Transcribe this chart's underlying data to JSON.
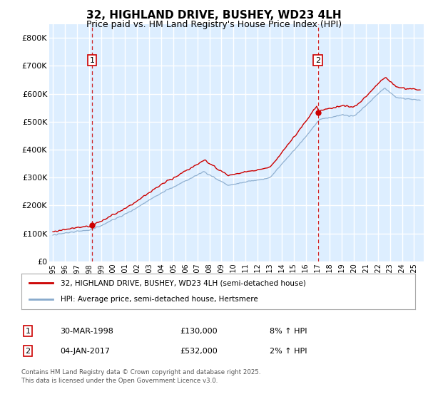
{
  "title_line1": "32, HIGHLAND DRIVE, BUSHEY, WD23 4LH",
  "title_line2": "Price paid vs. HM Land Registry's House Price Index (HPI)",
  "y_ticks": [
    0,
    100000,
    200000,
    300000,
    400000,
    500000,
    600000,
    700000,
    800000
  ],
  "y_tick_labels": [
    "£0",
    "£100K",
    "£200K",
    "£300K",
    "£400K",
    "£500K",
    "£600K",
    "£700K",
    "£800K"
  ],
  "red_line_color": "#cc0000",
  "blue_line_color": "#88aacc",
  "background_color": "#ddeeff",
  "grid_color": "#ffffff",
  "marker1_year": 1998.25,
  "marker1_value": 130000,
  "marker1_label": "1",
  "marker1_date": "30-MAR-1998",
  "marker1_price": "£130,000",
  "marker1_hpi": "8% ↑ HPI",
  "marker2_year": 2017.02,
  "marker2_value": 532000,
  "marker2_label": "2",
  "marker2_date": "04-JAN-2017",
  "marker2_price": "£532,000",
  "marker2_hpi": "2% ↑ HPI",
  "legend_entry1": "32, HIGHLAND DRIVE, BUSHEY, WD23 4LH (semi-detached house)",
  "legend_entry2": "HPI: Average price, semi-detached house, Hertsmere",
  "footnote": "Contains HM Land Registry data © Crown copyright and database right 2025.\nThis data is licensed under the Open Government Licence v3.0.",
  "fig_bg": "#ffffff"
}
